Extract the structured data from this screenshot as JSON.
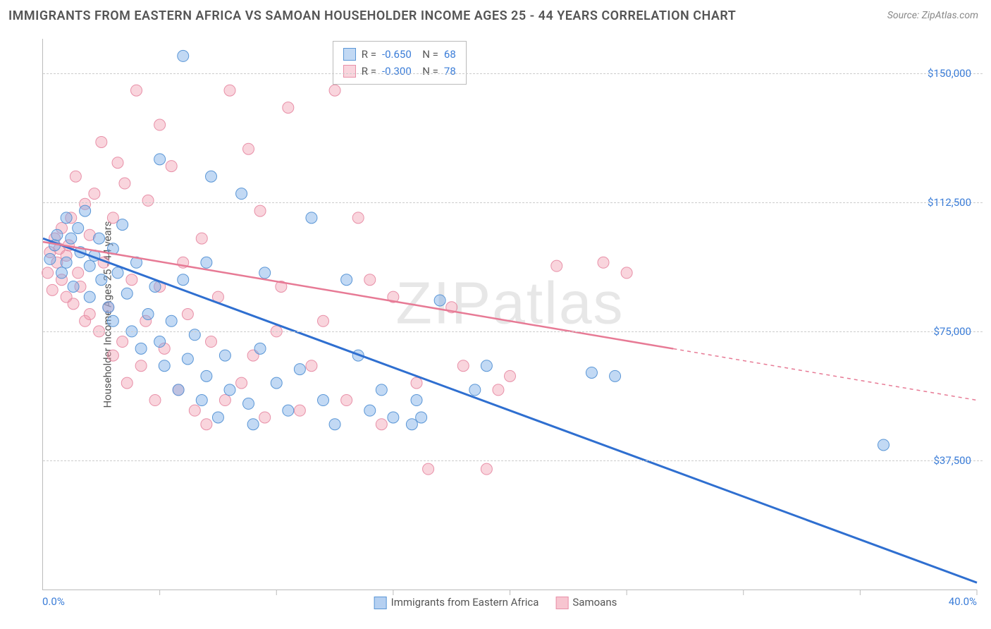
{
  "title": "IMMIGRANTS FROM EASTERN AFRICA VS SAMOAN HOUSEHOLDER INCOME AGES 25 - 44 YEARS CORRELATION CHART",
  "source": "Source: ZipAtlas.com",
  "watermark": "ZIPatlas",
  "ylabel": "Householder Income Ages 25 - 44 years",
  "chart": {
    "type": "scatter",
    "xlim": [
      0,
      40
    ],
    "ylim": [
      0,
      160000
    ],
    "xtick_labels": {
      "min": "0.0%",
      "max": "40.0%"
    },
    "ytick_positions": [
      37500,
      75000,
      112500,
      150000
    ],
    "ytick_labels": [
      "$37,500",
      "$75,000",
      "$112,500",
      "$150,000"
    ],
    "xtick_positions": [
      5,
      10,
      15,
      20,
      25,
      30,
      35,
      40
    ],
    "grid_color": "#cccccc",
    "background_color": "#ffffff",
    "axis_color": "#bbbbbb",
    "tick_label_color": "#3b7dd8",
    "label_color": "#555555",
    "label_fontsize": 15,
    "title_fontsize": 18
  },
  "series": [
    {
      "name": "Immigrants from Eastern Africa",
      "marker_color_fill": "rgba(120,170,230,0.45)",
      "marker_color_stroke": "#5a96d6",
      "marker_radius": 8,
      "line_color": "#2f6fd0",
      "line_width": 3,
      "trend": {
        "x0": 0,
        "y0": 102000,
        "x1": 40,
        "y1": 2000,
        "solid_until_x": 40
      },
      "stats": {
        "R": "-0.650",
        "N": "68"
      },
      "points": [
        [
          0.3,
          96000
        ],
        [
          0.5,
          100000
        ],
        [
          0.6,
          103000
        ],
        [
          0.8,
          92000
        ],
        [
          1.0,
          108000
        ],
        [
          1.0,
          95000
        ],
        [
          1.2,
          102000
        ],
        [
          1.3,
          88000
        ],
        [
          1.5,
          105000
        ],
        [
          1.6,
          98000
        ],
        [
          1.8,
          110000
        ],
        [
          2.0,
          94000
        ],
        [
          2.0,
          85000
        ],
        [
          2.2,
          97000
        ],
        [
          2.4,
          102000
        ],
        [
          2.5,
          90000
        ],
        [
          2.8,
          82000
        ],
        [
          3.0,
          99000
        ],
        [
          3.0,
          78000
        ],
        [
          3.2,
          92000
        ],
        [
          3.4,
          106000
        ],
        [
          3.6,
          86000
        ],
        [
          3.8,
          75000
        ],
        [
          4.0,
          95000
        ],
        [
          4.2,
          70000
        ],
        [
          4.5,
          80000
        ],
        [
          4.8,
          88000
        ],
        [
          5.0,
          72000
        ],
        [
          5.0,
          125000
        ],
        [
          5.2,
          65000
        ],
        [
          5.5,
          78000
        ],
        [
          5.8,
          58000
        ],
        [
          6.0,
          90000
        ],
        [
          6.0,
          155000
        ],
        [
          6.2,
          67000
        ],
        [
          6.5,
          74000
        ],
        [
          6.8,
          55000
        ],
        [
          7.0,
          62000
        ],
        [
          7.0,
          95000
        ],
        [
          7.2,
          120000
        ],
        [
          7.5,
          50000
        ],
        [
          7.8,
          68000
        ],
        [
          8.0,
          58000
        ],
        [
          8.5,
          115000
        ],
        [
          8.8,
          54000
        ],
        [
          9.0,
          48000
        ],
        [
          9.3,
          70000
        ],
        [
          9.5,
          92000
        ],
        [
          10.0,
          60000
        ],
        [
          10.5,
          52000
        ],
        [
          11.0,
          64000
        ],
        [
          11.5,
          108000
        ],
        [
          12.0,
          55000
        ],
        [
          12.5,
          48000
        ],
        [
          13.0,
          90000
        ],
        [
          13.5,
          68000
        ],
        [
          14.0,
          52000
        ],
        [
          14.5,
          58000
        ],
        [
          15.0,
          50000
        ],
        [
          15.8,
          48000
        ],
        [
          16.0,
          55000
        ],
        [
          16.2,
          50000
        ],
        [
          17.0,
          84000
        ],
        [
          18.5,
          58000
        ],
        [
          19.0,
          65000
        ],
        [
          23.5,
          63000
        ],
        [
          24.5,
          62000
        ],
        [
          36.0,
          42000
        ]
      ]
    },
    {
      "name": "Samoans",
      "marker_color_fill": "rgba(240,150,170,0.40)",
      "marker_color_stroke": "#e890a8",
      "marker_radius": 8,
      "line_color": "#e77a95",
      "line_width": 2.5,
      "trend": {
        "x0": 0,
        "y0": 101000,
        "x1": 40,
        "y1": 55000,
        "solid_until_x": 27
      },
      "stats": {
        "R": "-0.300",
        "N": "78"
      },
      "points": [
        [
          0.2,
          92000
        ],
        [
          0.3,
          98000
        ],
        [
          0.4,
          87000
        ],
        [
          0.5,
          102000
        ],
        [
          0.6,
          95000
        ],
        [
          0.7,
          99000
        ],
        [
          0.8,
          105000
        ],
        [
          0.8,
          90000
        ],
        [
          1.0,
          85000
        ],
        [
          1.0,
          97000
        ],
        [
          1.1,
          100000
        ],
        [
          1.2,
          108000
        ],
        [
          1.3,
          83000
        ],
        [
          1.4,
          120000
        ],
        [
          1.5,
          92000
        ],
        [
          1.6,
          88000
        ],
        [
          1.8,
          78000
        ],
        [
          1.8,
          112000
        ],
        [
          2.0,
          103000
        ],
        [
          2.0,
          80000
        ],
        [
          2.2,
          115000
        ],
        [
          2.4,
          75000
        ],
        [
          2.5,
          130000
        ],
        [
          2.6,
          95000
        ],
        [
          2.8,
          82000
        ],
        [
          3.0,
          108000
        ],
        [
          3.0,
          68000
        ],
        [
          3.2,
          124000
        ],
        [
          3.4,
          72000
        ],
        [
          3.5,
          118000
        ],
        [
          3.6,
          60000
        ],
        [
          3.8,
          90000
        ],
        [
          4.0,
          145000
        ],
        [
          4.2,
          65000
        ],
        [
          4.4,
          78000
        ],
        [
          4.5,
          113000
        ],
        [
          4.8,
          55000
        ],
        [
          5.0,
          88000
        ],
        [
          5.0,
          135000
        ],
        [
          5.2,
          70000
        ],
        [
          5.5,
          123000
        ],
        [
          5.8,
          58000
        ],
        [
          6.0,
          95000
        ],
        [
          6.2,
          80000
        ],
        [
          6.5,
          52000
        ],
        [
          6.8,
          102000
        ],
        [
          7.0,
          48000
        ],
        [
          7.2,
          72000
        ],
        [
          7.5,
          85000
        ],
        [
          7.8,
          55000
        ],
        [
          8.0,
          145000
        ],
        [
          8.5,
          60000
        ],
        [
          8.8,
          128000
        ],
        [
          9.0,
          68000
        ],
        [
          9.3,
          110000
        ],
        [
          9.5,
          50000
        ],
        [
          10.0,
          75000
        ],
        [
          10.2,
          88000
        ],
        [
          10.5,
          140000
        ],
        [
          11.0,
          52000
        ],
        [
          11.5,
          65000
        ],
        [
          12.0,
          78000
        ],
        [
          12.5,
          145000
        ],
        [
          13.0,
          55000
        ],
        [
          13.5,
          108000
        ],
        [
          14.0,
          90000
        ],
        [
          14.5,
          48000
        ],
        [
          15.0,
          85000
        ],
        [
          16.0,
          60000
        ],
        [
          16.5,
          35000
        ],
        [
          17.5,
          82000
        ],
        [
          18.0,
          65000
        ],
        [
          19.0,
          35000
        ],
        [
          19.5,
          58000
        ],
        [
          20.0,
          62000
        ],
        [
          22.0,
          94000
        ],
        [
          24.0,
          95000
        ],
        [
          25.0,
          92000
        ]
      ]
    }
  ],
  "bottom_legend": [
    {
      "label": "Immigrants from Eastern Africa",
      "fill": "rgba(120,170,230,0.55)",
      "stroke": "#5a96d6"
    },
    {
      "label": "Samoans",
      "fill": "rgba(240,150,170,0.55)",
      "stroke": "#e890a8"
    }
  ]
}
